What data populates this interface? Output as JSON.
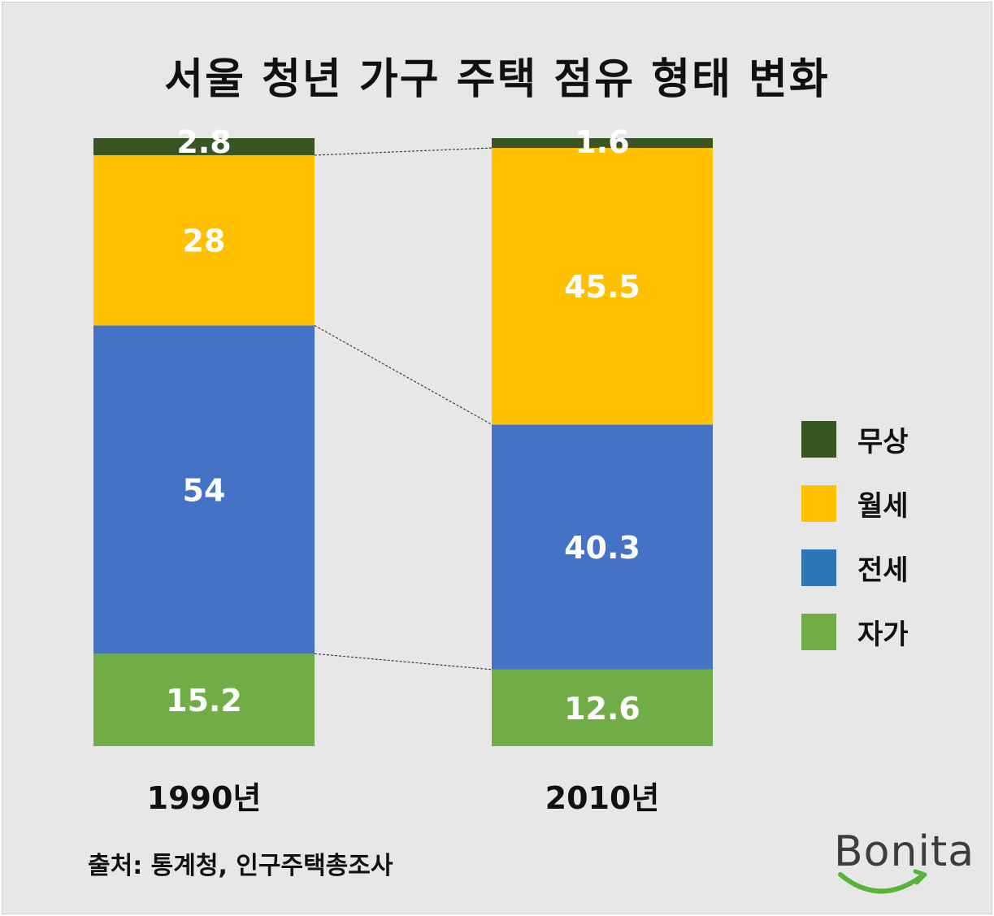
{
  "title": "서울 청년 가구 주택 점유 형태 변화",
  "source": "출처: 통계청, 인구주택총조사",
  "logo": {
    "text": "Bonita",
    "accent": "#59b33b"
  },
  "colors": {
    "무상": "#375623",
    "월세": "#ffc000",
    "전세": "#4472c4",
    "자가": "#70ad47",
    "legend_전세": "#2e75b6"
  },
  "legend": [
    {
      "label": "무상",
      "color": "#375623"
    },
    {
      "label": "월세",
      "color": "#ffc000"
    },
    {
      "label": "전세",
      "color": "#2e75b6"
    },
    {
      "label": "자가",
      "color": "#70ad47"
    }
  ],
  "chart_data": {
    "type": "bar",
    "stacked": true,
    "percent_stacked": true,
    "categories": [
      "1990년",
      "2010년"
    ],
    "series": [
      {
        "name": "자가",
        "values": [
          15.2,
          12.6
        ],
        "color": "#70ad47"
      },
      {
        "name": "전세",
        "values": [
          54,
          40.3
        ],
        "color": "#4472c4"
      },
      {
        "name": "월세",
        "values": [
          28,
          45.5
        ],
        "color": "#ffc000"
      },
      {
        "name": "무상",
        "values": [
          2.8,
          1.6
        ],
        "color": "#375623"
      }
    ],
    "series_lines": true,
    "legend_position": "right",
    "grid": false,
    "title": "서울 청년 가구 주택 점유 형태 변화"
  }
}
